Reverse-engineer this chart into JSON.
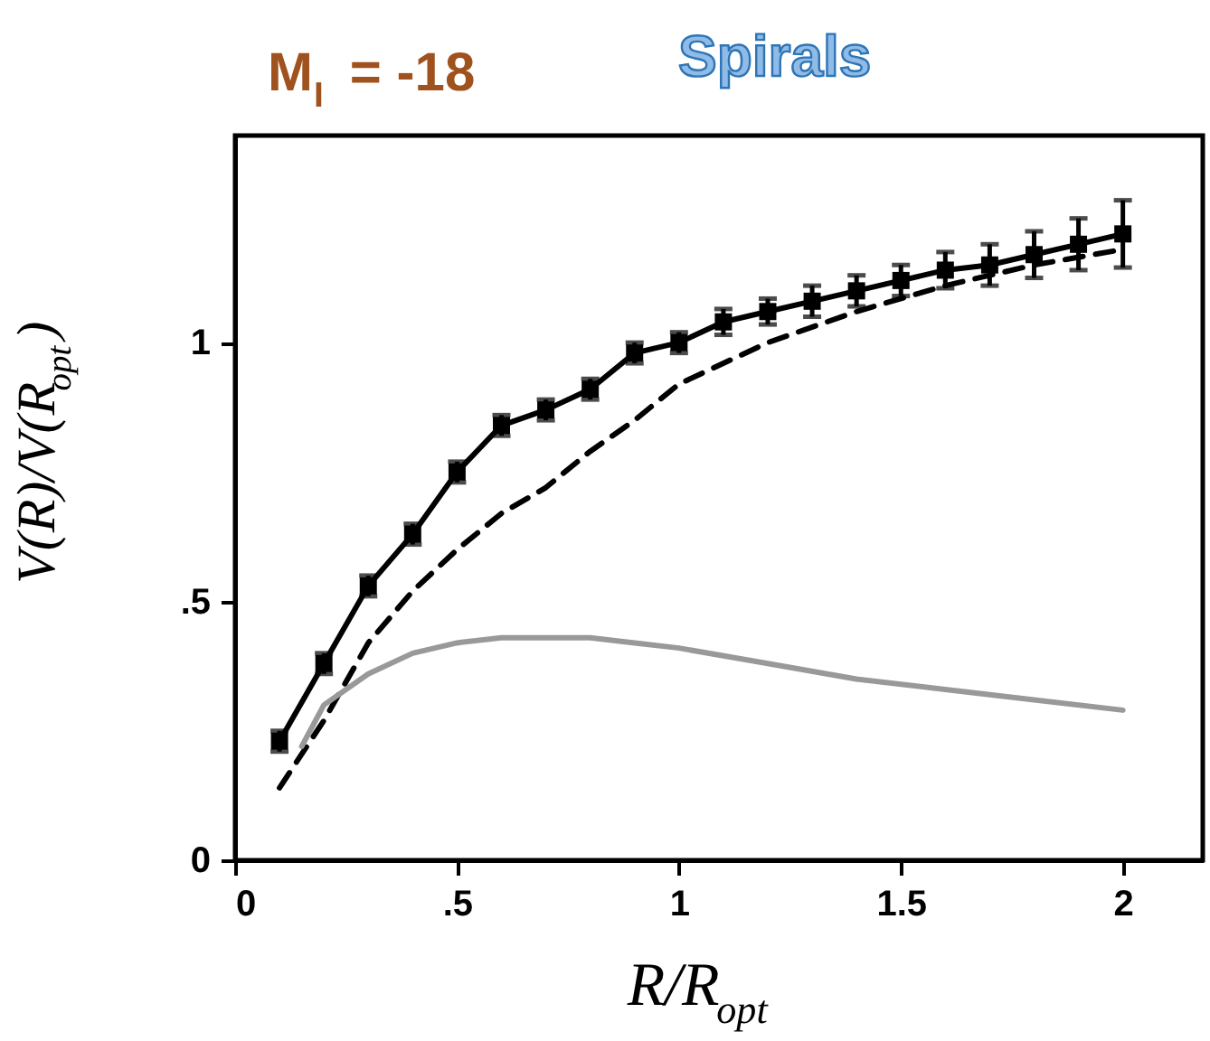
{
  "chart_data": {
    "type": "line",
    "title": "M$_{I}$ = -18",
    "annotations": [
      "Spirals"
    ],
    "xlabel": "R/R$_{opt}$",
    "ylabel": "V(R)/V(R$_{opt}$)",
    "xlim": [
      0,
      2.18
    ],
    "ylim": [
      0,
      1.4
    ],
    "xticks": [
      0,
      {
        "value": 0.5,
        "label": ".5"
      },
      1,
      1.5,
      2
    ],
    "yticks": [
      0,
      {
        "value": 0.5,
        "label": ".5"
      },
      1
    ],
    "grid": false,
    "series": [
      {
        "color": "#000000",
        "marker": "square",
        "line_style": "solid",
        "x": [
          0.1,
          0.2,
          0.3,
          0.4,
          0.5,
          0.6,
          0.7,
          0.8,
          0.9,
          1.0,
          1.1,
          1.2,
          1.3,
          1.4,
          1.5,
          1.6,
          1.7,
          1.8,
          1.9,
          2.0
        ],
        "values": [
          0.23,
          0.38,
          0.53,
          0.63,
          0.75,
          0.84,
          0.87,
          0.91,
          0.98,
          1.0,
          1.04,
          1.06,
          1.08,
          1.1,
          1.12,
          1.14,
          1.15,
          1.17,
          1.19,
          1.21
        ],
        "errors": [
          0.02,
          0.02,
          0.02,
          0.02,
          0.02,
          0.02,
          0.02,
          0.02,
          0.02,
          0.02,
          0.025,
          0.025,
          0.03,
          0.03,
          0.03,
          0.035,
          0.04,
          0.045,
          0.05,
          0.065
        ]
      },
      {
        "color": "#000000",
        "line_style": "dashed",
        "x": [
          0.1,
          0.2,
          0.3,
          0.4,
          0.5,
          0.6,
          0.7,
          0.8,
          0.9,
          1.0,
          1.2,
          1.4,
          1.6,
          1.8,
          2.0
        ],
        "values": [
          0.14,
          0.27,
          0.42,
          0.52,
          0.6,
          0.67,
          0.72,
          0.79,
          0.85,
          0.92,
          1.0,
          1.06,
          1.11,
          1.15,
          1.18
        ]
      },
      {
        "color": "#999999",
        "line_style": "solid",
        "x": [
          0.15,
          0.2,
          0.3,
          0.4,
          0.5,
          0.6,
          0.7,
          0.8,
          0.9,
          1.0,
          1.2,
          1.4,
          1.6,
          1.8,
          2.0
        ],
        "values": [
          0.22,
          0.3,
          0.36,
          0.4,
          0.42,
          0.43,
          0.43,
          0.43,
          0.42,
          0.41,
          0.38,
          0.35,
          0.33,
          0.31,
          0.29
        ]
      }
    ]
  }
}
